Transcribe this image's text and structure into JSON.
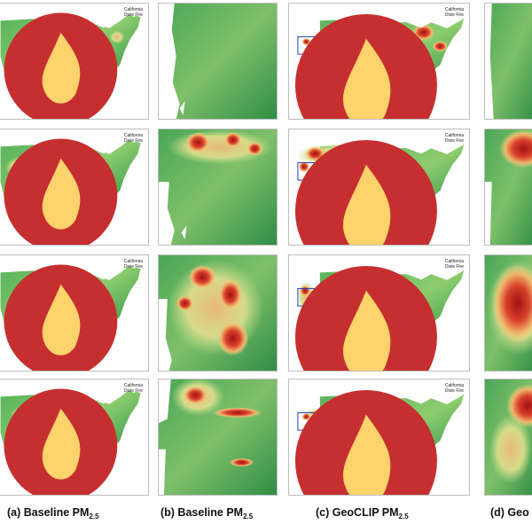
{
  "figure": {
    "annotation": {
      "line1": "California",
      "line2": "Dixie Fire"
    },
    "captions": [
      {
        "label": "(a) Baseline PM",
        "sub": "2.5"
      },
      {
        "label": "(b) Baseline PM",
        "sub": "2.5"
      },
      {
        "label": "(c) GeoCLIP PM",
        "sub": "2.5"
      },
      {
        "label": "(d) Geo",
        "sub": ""
      }
    ],
    "colors": {
      "low": "#2e8b46",
      "mid": "#f3e69a",
      "high": "#b81b1b",
      "box": "#1d3fbf"
    }
  }
}
